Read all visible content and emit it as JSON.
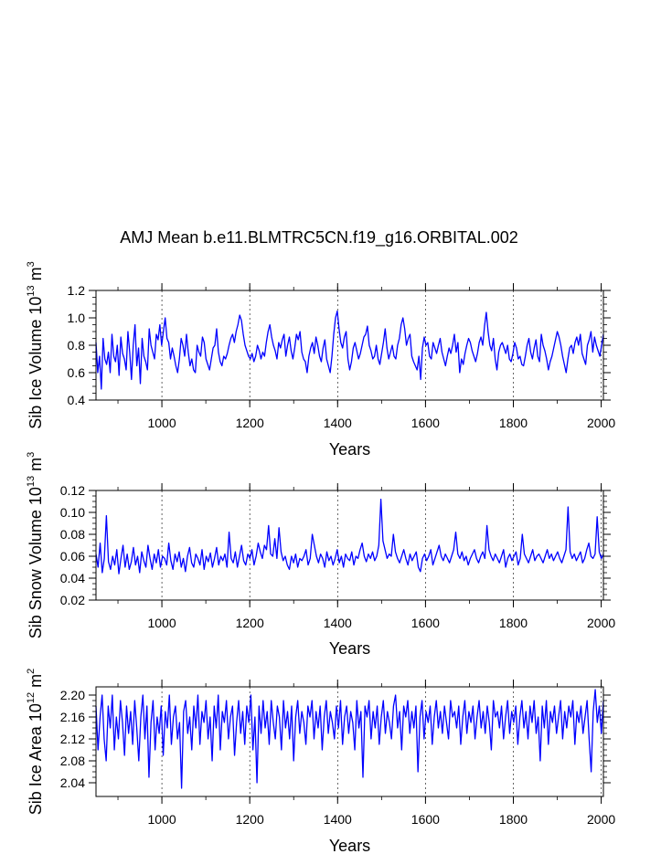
{
  "figure": {
    "title": "AMJ Mean b.e11.BLMTRC5CN.f19_g16.ORBITAL.002"
  },
  "style": {
    "series_color": "#0000ff",
    "axis_color": "#000000",
    "grid_color": "#000000"
  },
  "chart_data": [
    {
      "type": "line",
      "id": "ice-volume",
      "ylabel_main": "Sib Ice Volume 10",
      "ylabel_exp1": "13",
      "ylabel_unit": " m",
      "ylabel_exp2": "3",
      "xlabel": "Years",
      "xlim": [
        850,
        2005
      ],
      "ylim": [
        0.4,
        1.2
      ],
      "xticks": [
        1000,
        1200,
        1400,
        1600,
        1800,
        2000
      ],
      "xtick_labels": [
        "1000",
        "1200",
        "1400",
        "1600",
        "1800",
        "2000"
      ],
      "yticks": [
        0.4,
        0.6,
        0.8,
        1.0,
        1.2
      ],
      "ytick_labels": [
        "0.4",
        "0.6",
        "0.8",
        "1.0",
        "1.2"
      ],
      "vgrid_dashed": true,
      "series": [
        {
          "name": "Sib Ice Volume",
          "x_start": 850,
          "x_end": 2005,
          "values": [
            0.82,
            0.6,
            0.72,
            0.48,
            0.85,
            0.7,
            0.66,
            0.75,
            0.6,
            0.88,
            0.72,
            0.68,
            0.8,
            0.58,
            0.86,
            0.74,
            0.7,
            0.62,
            0.9,
            0.75,
            0.55,
            0.8,
            0.95,
            0.65,
            0.78,
            0.52,
            0.85,
            0.72,
            0.68,
            0.62,
            0.92,
            0.8,
            0.75,
            0.7,
            0.88,
            0.84,
            0.95,
            0.8,
            0.9,
            1.0,
            0.85,
            0.82,
            0.7,
            0.78,
            0.72,
            0.65,
            0.6,
            0.7,
            0.85,
            0.8,
            0.72,
            0.88,
            0.75,
            0.65,
            0.7,
            0.62,
            0.6,
            0.8,
            0.75,
            0.72,
            0.86,
            0.82,
            0.7,
            0.66,
            0.62,
            0.7,
            0.78,
            0.8,
            0.92,
            0.75,
            0.68,
            0.65,
            0.72,
            0.7,
            0.74,
            0.8,
            0.85,
            0.88,
            0.82,
            0.9,
            0.95,
            1.02,
            0.98,
            0.88,
            0.8,
            0.76,
            0.72,
            0.7,
            0.74,
            0.68,
            0.72,
            0.8,
            0.76,
            0.7,
            0.75,
            0.72,
            0.82,
            0.9,
            0.95,
            0.86,
            0.8,
            0.76,
            0.7,
            0.82,
            0.78,
            0.84,
            0.88,
            0.72,
            0.8,
            0.86,
            0.76,
            0.7,
            0.78,
            0.88,
            0.84,
            0.9,
            0.75,
            0.7,
            0.68,
            0.6,
            0.72,
            0.78,
            0.82,
            0.74,
            0.86,
            0.8,
            0.72,
            0.68,
            0.78,
            0.84,
            0.7,
            0.65,
            0.6,
            0.72,
            0.88,
            1.0,
            1.05,
            0.92,
            0.82,
            0.78,
            0.86,
            0.9,
            0.7,
            0.62,
            0.68,
            0.78,
            0.82,
            0.76,
            0.7,
            0.74,
            0.8,
            0.86,
            0.88,
            0.94,
            0.8,
            0.76,
            0.7,
            0.72,
            0.8,
            0.7,
            0.66,
            0.74,
            0.82,
            0.92,
            0.78,
            0.7,
            0.75,
            0.8,
            0.72,
            0.7,
            0.8,
            0.85,
            0.95,
            1.0,
            0.92,
            0.8,
            0.85,
            0.88,
            0.72,
            0.68,
            0.65,
            0.62,
            0.72,
            0.55,
            0.78,
            0.86,
            0.8,
            0.82,
            0.72,
            0.7,
            0.82,
            0.78,
            0.74,
            0.8,
            0.85,
            0.75,
            0.7,
            0.65,
            0.72,
            0.78,
            0.74,
            0.8,
            0.88,
            0.75,
            0.82,
            0.6,
            0.7,
            0.66,
            0.74,
            0.8,
            0.85,
            0.82,
            0.76,
            0.72,
            0.68,
            0.74,
            0.82,
            0.86,
            0.8,
            0.94,
            1.04,
            0.9,
            0.8,
            0.76,
            0.85,
            0.7,
            0.62,
            0.75,
            0.8,
            0.82,
            0.78,
            0.74,
            0.8,
            0.7,
            0.68,
            0.74,
            0.82,
            0.78,
            0.7,
            0.72,
            0.66,
            0.65,
            0.72,
            0.8,
            0.85,
            0.75,
            0.7,
            0.78,
            0.84,
            0.72,
            0.68,
            0.88,
            0.8,
            0.76,
            0.7,
            0.62,
            0.68,
            0.72,
            0.78,
            0.84,
            0.9,
            0.86,
            0.8,
            0.72,
            0.66,
            0.6,
            0.7,
            0.78,
            0.8,
            0.74,
            0.82,
            0.86,
            0.8,
            0.88,
            0.74,
            0.7,
            0.66,
            0.8,
            0.84,
            0.9,
            0.75,
            0.86,
            0.8,
            0.76,
            0.72,
            0.8,
            0.88
          ]
        }
      ]
    },
    {
      "type": "line",
      "id": "snow-volume",
      "ylabel_main": "Sib Snow Volume 10",
      "ylabel_exp1": "13",
      "ylabel_unit": " m",
      "ylabel_exp2": "3",
      "xlabel": "Years",
      "xlim": [
        850,
        2005
      ],
      "ylim": [
        0.02,
        0.12
      ],
      "xticks": [
        1000,
        1200,
        1400,
        1600,
        1800,
        2000
      ],
      "xtick_labels": [
        "1000",
        "1200",
        "1400",
        "1600",
        "1800",
        "2000"
      ],
      "yticks": [
        0.02,
        0.04,
        0.06,
        0.08,
        0.1,
        0.12
      ],
      "ytick_labels": [
        "0.02",
        "0.04",
        "0.06",
        "0.08",
        "0.10",
        "0.12"
      ],
      "vgrid_dashed": true,
      "series": [
        {
          "name": "Sib Snow Volume",
          "x_start": 850,
          "x_end": 2005,
          "values": [
            0.062,
            0.05,
            0.072,
            0.045,
            0.058,
            0.097,
            0.055,
            0.048,
            0.06,
            0.052,
            0.066,
            0.044,
            0.058,
            0.07,
            0.05,
            0.062,
            0.048,
            0.055,
            0.068,
            0.052,
            0.06,
            0.045,
            0.064,
            0.056,
            0.05,
            0.07,
            0.058,
            0.048,
            0.062,
            0.054,
            0.066,
            0.05,
            0.06,
            0.058,
            0.052,
            0.072,
            0.056,
            0.048,
            0.062,
            0.055,
            0.064,
            0.05,
            0.058,
            0.046,
            0.06,
            0.068,
            0.054,
            0.05,
            0.062,
            0.058,
            0.052,
            0.066,
            0.048,
            0.06,
            0.055,
            0.063,
            0.05,
            0.058,
            0.068,
            0.052,
            0.06,
            0.056,
            0.062,
            0.05,
            0.082,
            0.058,
            0.054,
            0.064,
            0.05,
            0.06,
            0.07,
            0.056,
            0.052,
            0.062,
            0.058,
            0.066,
            0.052,
            0.06,
            0.072,
            0.064,
            0.058,
            0.07,
            0.066,
            0.088,
            0.062,
            0.06,
            0.076,
            0.058,
            0.086,
            0.064,
            0.056,
            0.06,
            0.052,
            0.048,
            0.06,
            0.054,
            0.062,
            0.05,
            0.058,
            0.056,
            0.06,
            0.066,
            0.052,
            0.058,
            0.08,
            0.07,
            0.06,
            0.054,
            0.062,
            0.058,
            0.05,
            0.064,
            0.056,
            0.06,
            0.052,
            0.058,
            0.066,
            0.054,
            0.06,
            0.05,
            0.062,
            0.058,
            0.056,
            0.064,
            0.052,
            0.06,
            0.058,
            0.066,
            0.072,
            0.06,
            0.055,
            0.062,
            0.058,
            0.064,
            0.056,
            0.06,
            0.07,
            0.112,
            0.074,
            0.066,
            0.058,
            0.062,
            0.06,
            0.08,
            0.064,
            0.058,
            0.054,
            0.06,
            0.066,
            0.058,
            0.052,
            0.062,
            0.056,
            0.06,
            0.064,
            0.05,
            0.046,
            0.058,
            0.062,
            0.056,
            0.06,
            0.066,
            0.052,
            0.058,
            0.064,
            0.07,
            0.06,
            0.056,
            0.062,
            0.058,
            0.054,
            0.06,
            0.066,
            0.082,
            0.062,
            0.058,
            0.064,
            0.056,
            0.06,
            0.052,
            0.058,
            0.062,
            0.066,
            0.058,
            0.054,
            0.06,
            0.064,
            0.058,
            0.088,
            0.066,
            0.06,
            0.056,
            0.062,
            0.058,
            0.054,
            0.06,
            0.066,
            0.05,
            0.058,
            0.062,
            0.056,
            0.06,
            0.064,
            0.052,
            0.058,
            0.08,
            0.062,
            0.058,
            0.054,
            0.06,
            0.066,
            0.056,
            0.06,
            0.062,
            0.058,
            0.054,
            0.06,
            0.066,
            0.058,
            0.062,
            0.056,
            0.06,
            0.064,
            0.058,
            0.054,
            0.06,
            0.066,
            0.105,
            0.064,
            0.058,
            0.062,
            0.056,
            0.06,
            0.064,
            0.054,
            0.058,
            0.066,
            0.072,
            0.06,
            0.058,
            0.062,
            0.096,
            0.064,
            0.058,
            0.062
          ]
        }
      ]
    },
    {
      "type": "line",
      "id": "ice-area",
      "ylabel_main": "Sib Ice Area 10",
      "ylabel_exp1": "12",
      "ylabel_unit": " m",
      "ylabel_exp2": "2",
      "xlabel": "Years",
      "xlim": [
        850,
        2005
      ],
      "ylim": [
        2.015,
        2.215
      ],
      "xticks": [
        1000,
        1200,
        1400,
        1600,
        1800,
        2000
      ],
      "xtick_labels": [
        "1000",
        "1200",
        "1400",
        "1600",
        "1800",
        "2000"
      ],
      "yticks": [
        2.04,
        2.08,
        2.12,
        2.16,
        2.2
      ],
      "ytick_labels": [
        "2.04",
        "2.08",
        "2.12",
        "2.16",
        "2.20"
      ],
      "vgrid_dashed": true,
      "series": [
        {
          "name": "Sib Ice Area",
          "x_start": 850,
          "x_end": 2005,
          "values": [
            2.18,
            2.1,
            2.16,
            2.2,
            2.12,
            2.08,
            2.18,
            2.14,
            2.2,
            2.1,
            2.16,
            2.12,
            2.19,
            2.15,
            2.09,
            2.18,
            2.13,
            2.17,
            2.11,
            2.19,
            2.14,
            2.08,
            2.16,
            2.2,
            2.12,
            2.18,
            2.05,
            2.15,
            2.19,
            2.1,
            2.16,
            2.13,
            2.18,
            2.09,
            2.17,
            2.14,
            2.2,
            2.11,
            2.16,
            2.18,
            2.12,
            2.15,
            2.03,
            2.17,
            2.19,
            2.13,
            2.16,
            2.1,
            2.18,
            2.14,
            2.2,
            2.11,
            2.17,
            2.15,
            2.19,
            2.12,
            2.16,
            2.08,
            2.18,
            2.14,
            2.2,
            2.1,
            2.17,
            2.15,
            2.19,
            2.12,
            2.16,
            2.18,
            2.09,
            2.15,
            2.19,
            2.13,
            2.17,
            2.11,
            2.18,
            2.15,
            2.2,
            2.1,
            2.16,
            2.04,
            2.18,
            2.13,
            2.19,
            2.14,
            2.17,
            2.11,
            2.19,
            2.15,
            2.12,
            2.18,
            2.16,
            2.1,
            2.19,
            2.14,
            2.17,
            2.12,
            2.18,
            2.08,
            2.16,
            2.19,
            2.13,
            2.17,
            2.15,
            2.11,
            2.18,
            2.16,
            2.19,
            2.12,
            2.17,
            2.14,
            2.18,
            2.1,
            2.16,
            2.19,
            2.13,
            2.17,
            2.15,
            2.12,
            2.18,
            2.14,
            2.19,
            2.11,
            2.16,
            2.18,
            2.13,
            2.17,
            2.15,
            2.1,
            2.19,
            2.14,
            2.17,
            2.05,
            2.18,
            2.16,
            2.19,
            2.12,
            2.17,
            2.14,
            2.18,
            2.11,
            2.16,
            2.19,
            2.13,
            2.17,
            2.15,
            2.12,
            2.18,
            2.2,
            2.14,
            2.17,
            2.1,
            2.18,
            2.16,
            2.19,
            2.13,
            2.17,
            2.14,
            2.18,
            2.06,
            2.16,
            2.19,
            2.12,
            2.17,
            2.15,
            2.18,
            2.11,
            2.16,
            2.19,
            2.14,
            2.17,
            2.13,
            2.18,
            2.15,
            2.12,
            2.19,
            2.16,
            2.17,
            2.14,
            2.18,
            2.11,
            2.16,
            2.19,
            2.13,
            2.17,
            2.15,
            2.18,
            2.12,
            2.16,
            2.19,
            2.14,
            2.17,
            2.13,
            2.18,
            2.15,
            2.1,
            2.19,
            2.16,
            2.17,
            2.14,
            2.18,
            2.12,
            2.16,
            2.19,
            2.13,
            2.17,
            2.15,
            2.18,
            2.11,
            2.16,
            2.19,
            2.14,
            2.17,
            2.12,
            2.18,
            2.15,
            2.19,
            2.13,
            2.16,
            2.08,
            2.18,
            2.14,
            2.19,
            2.11,
            2.17,
            2.15,
            2.18,
            2.13,
            2.16,
            2.19,
            2.12,
            2.17,
            2.14,
            2.18,
            2.16,
            2.19,
            2.11,
            2.17,
            2.15,
            2.18,
            2.13,
            2.16,
            2.19,
            2.12,
            2.06,
            2.17,
            2.21,
            2.15,
            2.18,
            2.13,
            2.19
          ]
        }
      ]
    }
  ]
}
